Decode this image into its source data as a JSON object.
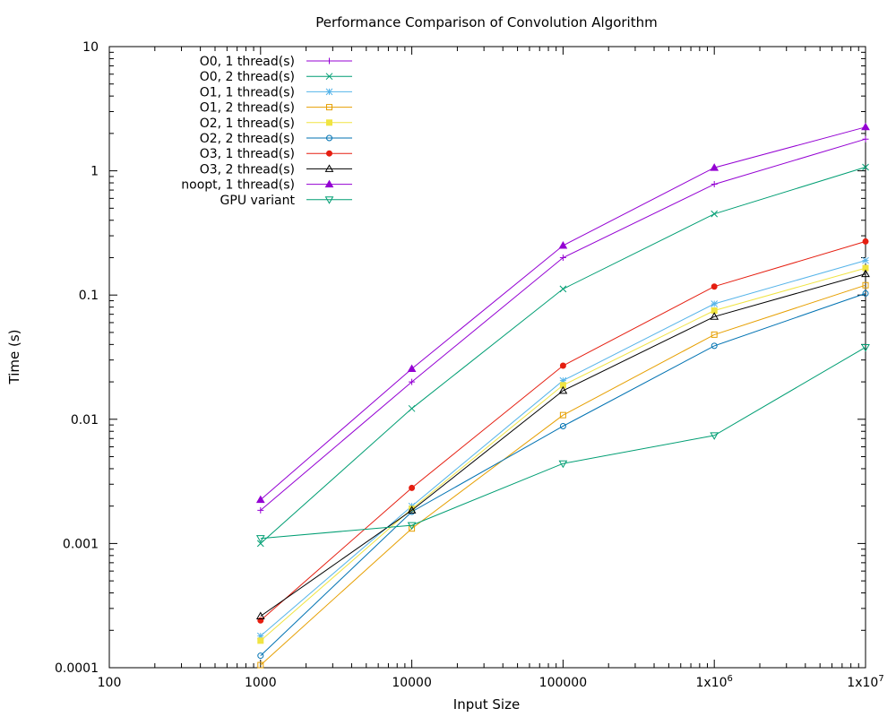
{
  "chart_data": {
    "type": "line",
    "title": "Performance Comparison of Convolution Algorithm",
    "xlabel": "Input Size",
    "ylabel": "Time (s)",
    "xscale": "log",
    "yscale": "log",
    "xlim": [
      100,
      10000000
    ],
    "ylim": [
      0.0001,
      10
    ],
    "x_ticks": [
      {
        "value": 100,
        "label": "100"
      },
      {
        "value": 1000,
        "label": "1000"
      },
      {
        "value": 10000,
        "label": "10000"
      },
      {
        "value": 100000,
        "label": "100000"
      },
      {
        "value": 1000000,
        "label": "1x10",
        "exp": "6"
      },
      {
        "value": 10000000,
        "label": "1x10",
        "exp": "7"
      }
    ],
    "y_ticks": [
      {
        "value": 0.0001,
        "label": "0.0001"
      },
      {
        "value": 0.001,
        "label": "0.001"
      },
      {
        "value": 0.01,
        "label": "0.01"
      },
      {
        "value": 0.1,
        "label": "0.1"
      },
      {
        "value": 1,
        "label": "1"
      },
      {
        "value": 10,
        "label": "10"
      }
    ],
    "grid": false,
    "legend_position": "top-left",
    "x": [
      1000,
      10000,
      100000,
      1000000,
      10000000
    ],
    "series": [
      {
        "name": "O0, 1 thread(s)",
        "color": "#9400d3",
        "marker": "plus",
        "values": [
          0.00185,
          0.02,
          0.2,
          0.78,
          1.8
        ]
      },
      {
        "name": "O0, 2 thread(s)",
        "color": "#009e73",
        "marker": "cross",
        "values": [
          0.001,
          0.0122,
          0.112,
          0.45,
          1.07
        ]
      },
      {
        "name": "O1, 1 thread(s)",
        "color": "#56b4e9",
        "marker": "star",
        "values": [
          0.00018,
          0.002,
          0.0205,
          0.085,
          0.19
        ]
      },
      {
        "name": "O1, 2 thread(s)",
        "color": "#e69f00",
        "marker": "square-open",
        "values": [
          0.000105,
          0.00132,
          0.0108,
          0.048,
          0.12
        ]
      },
      {
        "name": "O2, 1 thread(s)",
        "color": "#f0e442",
        "marker": "square-filled",
        "values": [
          0.000165,
          0.0019,
          0.0188,
          0.075,
          0.165
        ]
      },
      {
        "name": "O2, 2 thread(s)",
        "color": "#0072b2",
        "marker": "circle-open",
        "values": [
          0.000125,
          0.0018,
          0.0088,
          0.039,
          0.103
        ]
      },
      {
        "name": "O3, 1 thread(s)",
        "color": "#e51e10",
        "marker": "circle-filled",
        "values": [
          0.00024,
          0.0028,
          0.027,
          0.117,
          0.27
        ]
      },
      {
        "name": "O3, 2 thread(s)",
        "color": "#000000",
        "marker": "triangle-open",
        "values": [
          0.00026,
          0.00185,
          0.017,
          0.067,
          0.148
        ]
      },
      {
        "name": "noopt, 1 thread(s)",
        "color": "#9400d3",
        "marker": "triangle-filled",
        "values": [
          0.00225,
          0.0255,
          0.25,
          1.06,
          2.25
        ]
      },
      {
        "name": "GPU variant",
        "color": "#009e73",
        "marker": "triangle-down-open",
        "values": [
          0.0011,
          0.0014,
          0.0044,
          0.0074,
          0.038
        ]
      }
    ]
  }
}
